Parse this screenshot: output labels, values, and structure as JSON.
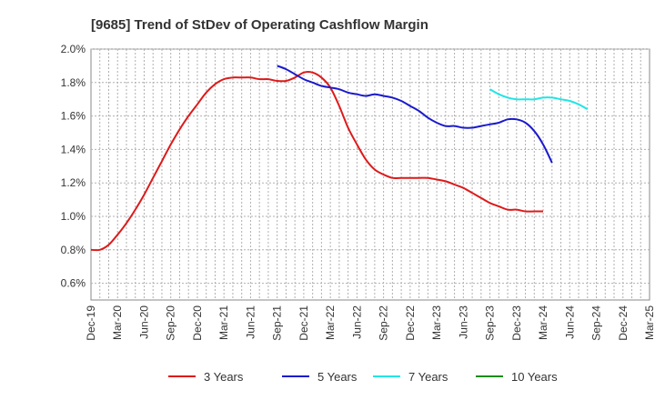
{
  "chart_data": {
    "type": "line",
    "title": "[9685]  Trend of StDev of Operating Cashflow Margin",
    "xlabel": "",
    "ylabel": "",
    "x_labels": [
      "Dec-19",
      "Mar-20",
      "Jun-20",
      "Sep-20",
      "Dec-20",
      "Mar-21",
      "Jun-21",
      "Sep-21",
      "Dec-21",
      "Mar-22",
      "Jun-22",
      "Sep-22",
      "Dec-22",
      "Mar-23",
      "Jun-23",
      "Sep-23",
      "Dec-23",
      "Mar-24",
      "Jun-24",
      "Sep-24",
      "Dec-24",
      "Mar-25"
    ],
    "y_ticks": [
      "0.6%",
      "0.8%",
      "1.0%",
      "1.2%",
      "1.4%",
      "1.6%",
      "1.8%",
      "2.0%"
    ],
    "ylim": [
      0.5,
      2.0
    ],
    "grid": true,
    "legend_position": "bottom",
    "series": [
      {
        "name": "3 Years",
        "color": "#dd1a1a",
        "start_index": 0,
        "values": [
          0.8,
          0.8,
          0.83,
          0.89,
          0.96,
          1.04,
          1.13,
          1.23,
          1.33,
          1.43,
          1.52,
          1.6,
          1.67,
          1.74,
          1.79,
          1.82,
          1.83,
          1.83,
          1.83,
          1.82,
          1.82,
          1.81,
          1.81,
          1.83,
          1.86,
          1.86,
          1.83,
          1.77,
          1.66,
          1.53,
          1.43,
          1.34,
          1.28,
          1.25,
          1.23,
          1.23,
          1.23,
          1.23,
          1.23,
          1.22,
          1.21,
          1.19,
          1.17,
          1.14,
          1.11,
          1.08,
          1.06,
          1.04,
          1.04,
          1.03,
          1.03,
          1.03
        ]
      },
      {
        "name": "5 Years",
        "color": "#1a1acc",
        "start_index": 21,
        "values": [
          1.9,
          1.88,
          1.85,
          1.82,
          1.8,
          1.78,
          1.77,
          1.76,
          1.74,
          1.73,
          1.72,
          1.73,
          1.72,
          1.71,
          1.69,
          1.66,
          1.63,
          1.59,
          1.56,
          1.54,
          1.54,
          1.53,
          1.53,
          1.54,
          1.55,
          1.56,
          1.58,
          1.58,
          1.56,
          1.51,
          1.43,
          1.32
        ]
      },
      {
        "name": "7 Years",
        "color": "#22e5e5",
        "start_index": 45,
        "values": [
          1.76,
          1.73,
          1.71,
          1.7,
          1.7,
          1.7,
          1.71,
          1.71,
          1.7,
          1.69,
          1.67,
          1.64
        ]
      },
      {
        "name": "10 Years",
        "color": "#1a8c1a",
        "start_index": 0,
        "values": []
      }
    ]
  }
}
